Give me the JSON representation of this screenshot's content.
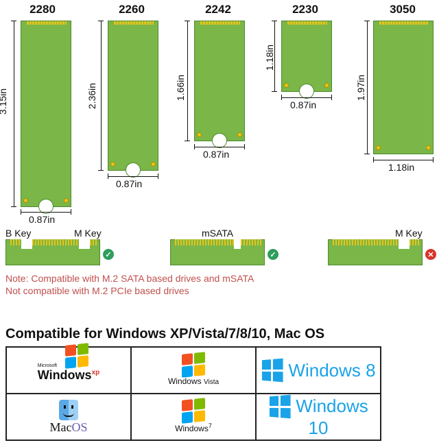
{
  "sizes": [
    {
      "name": "2280",
      "length": "3.15in",
      "width": "0.87in"
    },
    {
      "name": "2260",
      "length": "2.36in",
      "width": "0.87in"
    },
    {
      "name": "2242",
      "length": "1.66in",
      "width": "0.87in"
    },
    {
      "name": "2230",
      "length": "1.18in",
      "width": "0.87in"
    },
    {
      "name": "3050",
      "length": "1.97in",
      "width": "1.18in"
    }
  ],
  "keys": {
    "b_key": "B Key",
    "m_key_left": "M Key",
    "msata": "mSATA",
    "m_key_right": "M Key"
  },
  "status": {
    "check": "✓",
    "cross": "✕"
  },
  "notes": {
    "line1": "Note: Compatible with M.2 SATA based drives and mSATA",
    "line2": "Not compatible with M.2 PCIe based drives"
  },
  "compat_title": "Compatible for Windows XP/Vista/7/8/10, Mac OS",
  "os_logos": {
    "xp_small": "Microsoft",
    "xp_main": "Windows",
    "xp_sup": "xp",
    "vista_main": "Windows",
    "vista_sub": "Vista",
    "win8": "Windows 8",
    "mac_a": "Mac",
    "mac_b": "OS",
    "win7_main": "Windows",
    "win7_sup": "7",
    "win10": "Windows 10"
  },
  "colors": {
    "pcb_green": "#7ab648",
    "gold": "#e4c41a",
    "check_green": "#2e9e5b",
    "cross_red": "#d9342b",
    "note_red": "#c0504d",
    "metro_blue": "#1aa3e8"
  }
}
